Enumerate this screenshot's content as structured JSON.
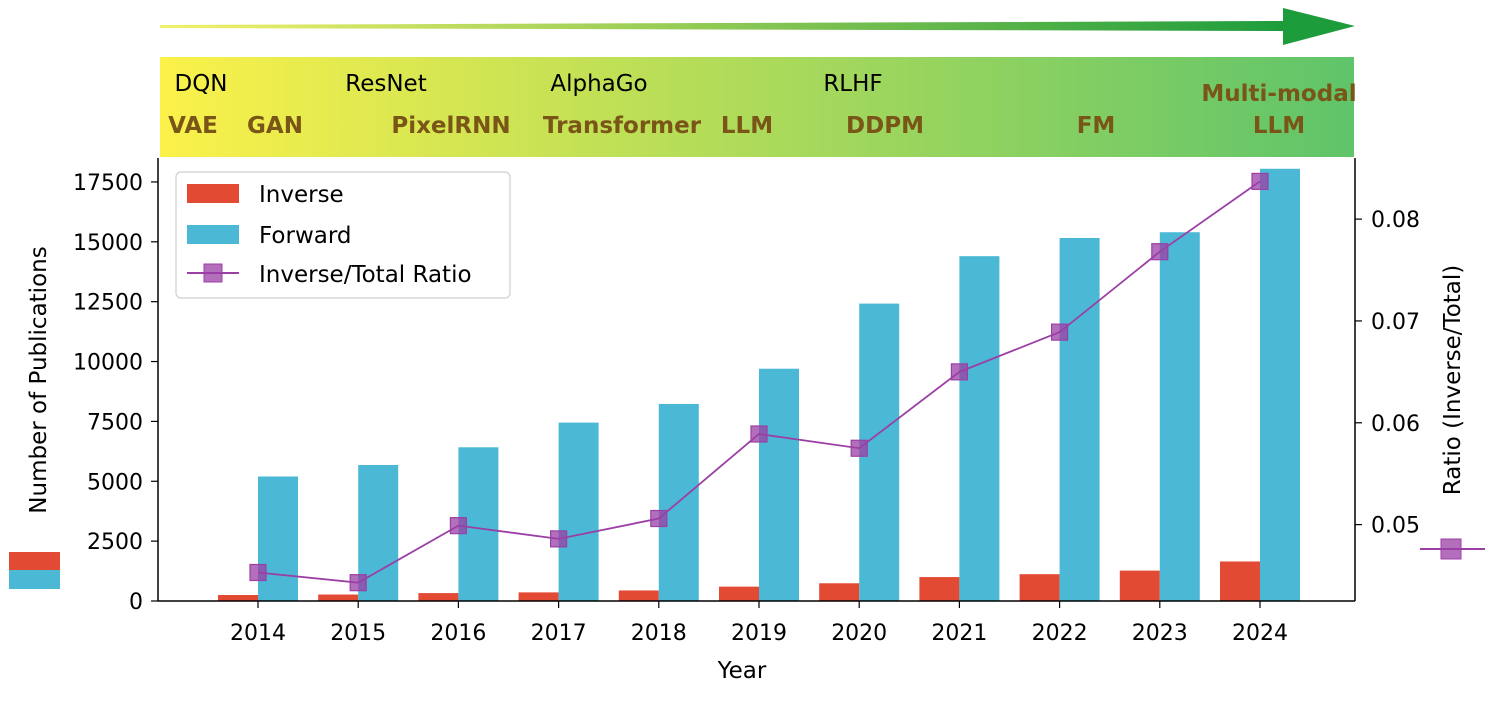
{
  "timeline": {
    "top_row": [
      "DQN",
      "ResNet",
      "AlphaGo",
      "RLHF"
    ],
    "bottom_row": [
      "VAE",
      "GAN",
      "PixelRNN",
      "Transformer",
      "LLM",
      "DDPM",
      "FM"
    ],
    "multimodal_line1": "Multi-modal",
    "multimodal_line2": "LLM",
    "colors": {
      "gradient_start": "#fbf14a",
      "gradient_end": "#5fc46a",
      "highlight_text": "#7a5518",
      "arrow": "#1d9c3c"
    }
  },
  "chart_data": {
    "type": "bar",
    "xlabel": "Year",
    "ylabel": "Number of Publications",
    "y2label": "Ratio (Inverse/Total)",
    "categories": [
      "2014",
      "2015",
      "2016",
      "2017",
      "2018",
      "2019",
      "2020",
      "2021",
      "2022",
      "2023",
      "2024"
    ],
    "series": [
      {
        "name": "Inverse",
        "kind": "bar",
        "color": "#e34a33",
        "values": [
          250,
          270,
          330,
          360,
          440,
          600,
          740,
          1000,
          1120,
          1270,
          1650
        ]
      },
      {
        "name": "Forward",
        "kind": "bar",
        "color": "#4bb9d5",
        "values": [
          5200,
          5680,
          6420,
          7450,
          8230,
          9700,
          12420,
          14400,
          15160,
          15400,
          18050
        ]
      },
      {
        "name": "Inverse/Total Ratio",
        "kind": "line",
        "axis": "right",
        "color": "#9b3fa5",
        "values": [
          0.0453,
          0.0443,
          0.0499,
          0.0486,
          0.0506,
          0.0589,
          0.0575,
          0.065,
          0.0689,
          0.0768,
          0.0837
        ]
      }
    ],
    "ylim": [
      0,
      18500
    ],
    "y2lim": [
      0.0425,
      0.086
    ],
    "yticks": [
      0,
      2500,
      5000,
      7500,
      10000,
      12500,
      15000,
      17500
    ],
    "y2ticks": [
      0.05,
      0.06,
      0.07,
      0.08
    ],
    "y2tick_labels": [
      "0.05",
      "0.06",
      "0.07",
      "0.08"
    ],
    "legend_position": "top-left",
    "grid": false
  }
}
